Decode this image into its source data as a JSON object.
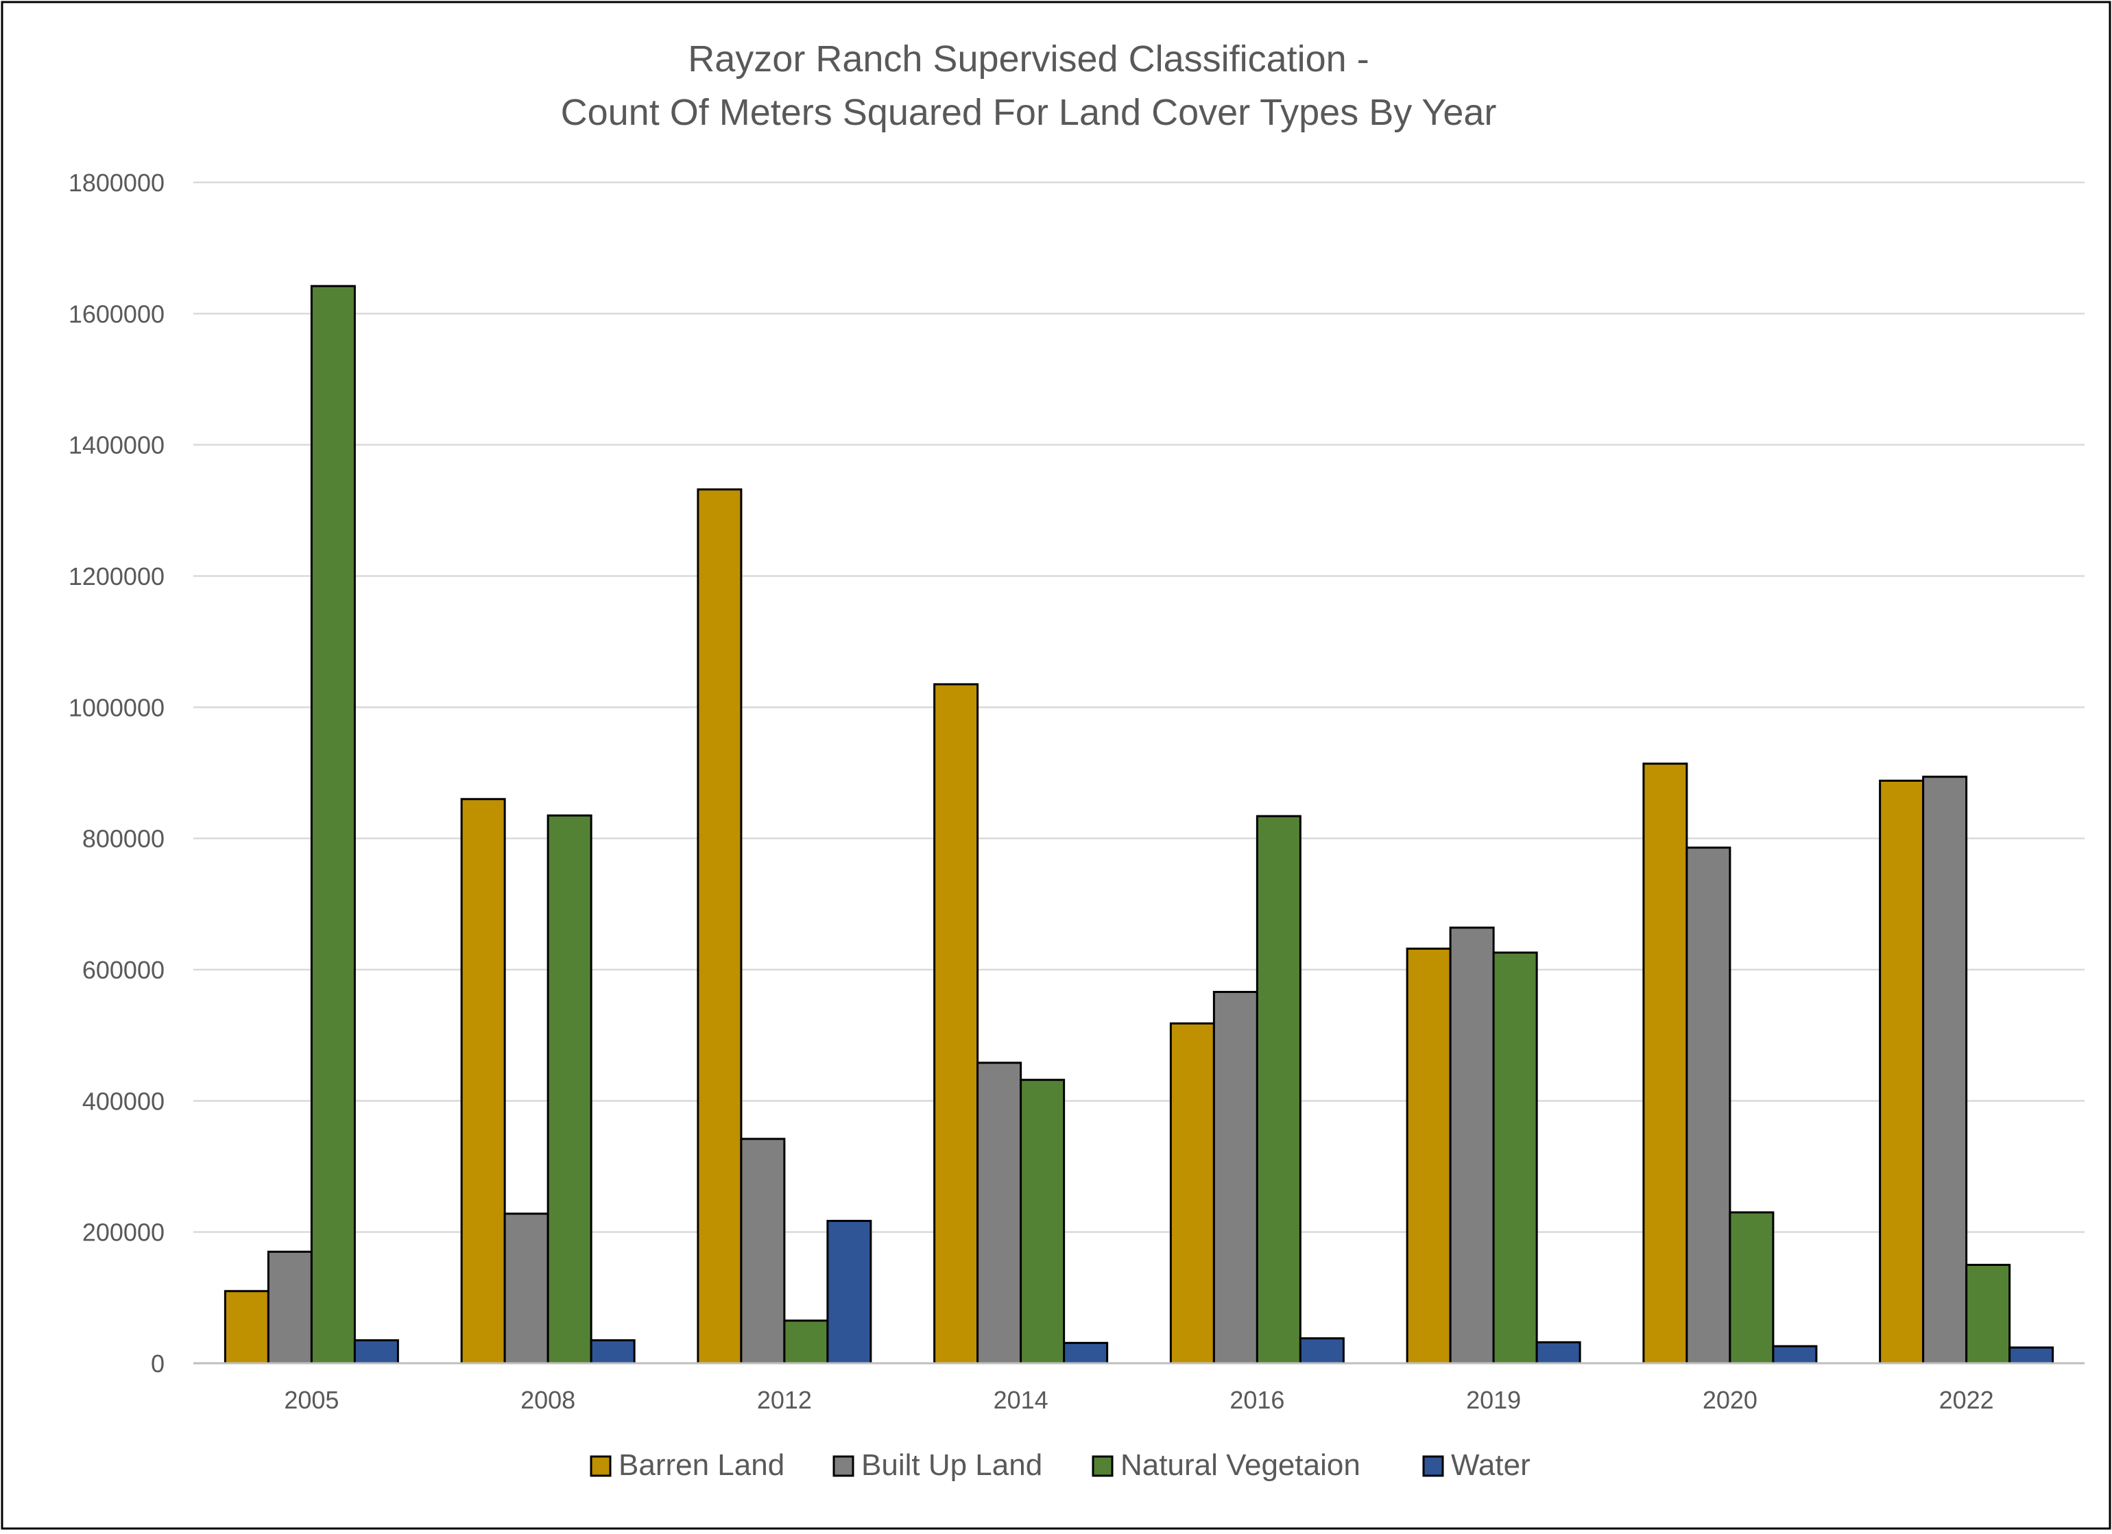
{
  "chart_data": {
    "type": "bar",
    "title_lines": [
      "Rayzor Ranch Supervised Classification -",
      "Count Of Meters Squared For Land Cover Types By Year"
    ],
    "xlabel": "",
    "ylabel": "",
    "ylim": [
      0,
      1800000
    ],
    "y_ticks": [
      0,
      200000,
      400000,
      600000,
      800000,
      1000000,
      1200000,
      1400000,
      1600000,
      1800000
    ],
    "y_tick_labels": [
      "0",
      "200000",
      "400000",
      "600000",
      "800000",
      "1000000",
      "1200000",
      "1400000",
      "1600000",
      "1800000"
    ],
    "grid": true,
    "legend_position": "bottom",
    "categories": [
      "2005",
      "2008",
      "2012",
      "2014",
      "2016",
      "2019",
      "2020",
      "2022"
    ],
    "series": [
      {
        "name": "Barren Land",
        "color": "#BF9000",
        "values": [
          110000,
          860000,
          1332000,
          1035000,
          518000,
          632000,
          914000,
          888000
        ]
      },
      {
        "name": "Built Up Land",
        "color": "#808080",
        "values": [
          170000,
          228000,
          342000,
          458000,
          566000,
          664000,
          786000,
          894000
        ]
      },
      {
        "name": "Natural Vegetaion",
        "color": "#548235",
        "values": [
          1642000,
          835000,
          65000,
          432000,
          834000,
          626000,
          230000,
          150000
        ]
      },
      {
        "name": "Water",
        "color": "#2F5597",
        "values": [
          35000,
          35000,
          217000,
          31000,
          38000,
          32000,
          26000,
          24000
        ]
      }
    ]
  }
}
